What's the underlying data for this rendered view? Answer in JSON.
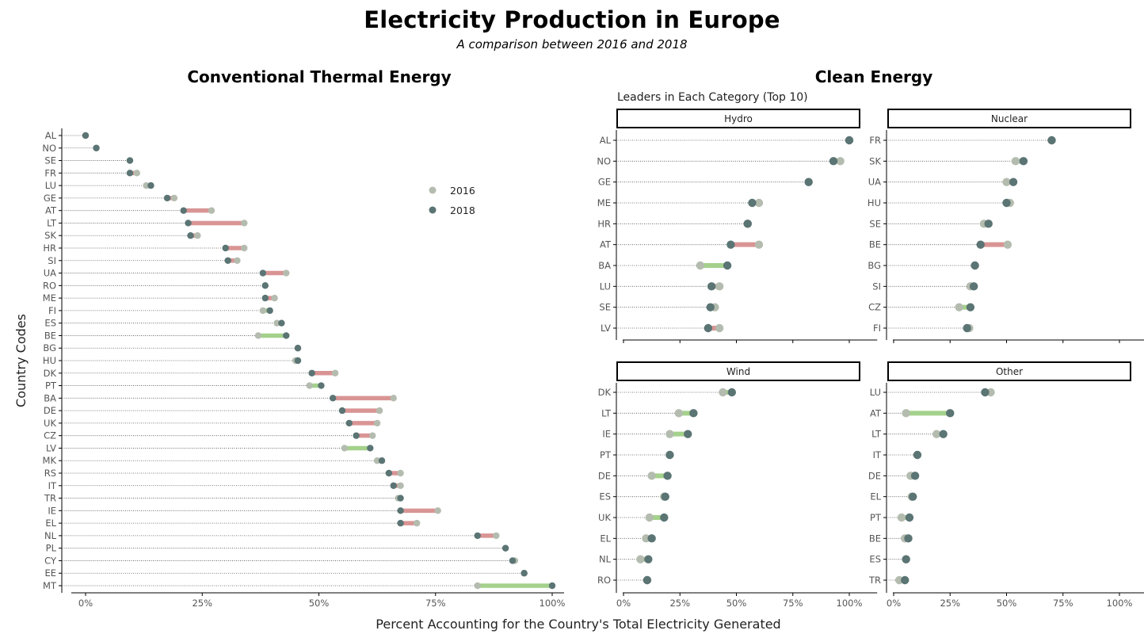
{
  "title": "Electricity Production in Europe",
  "subtitle": "A comparison between 2016 and 2018",
  "colors": {
    "point_2016": "#b4bcaf",
    "point_2018": "#5b7474",
    "increase": "#a4d18b",
    "decrease": "#d99494",
    "guide": "#555555"
  },
  "legend": {
    "items": [
      "2016",
      "2018"
    ]
  },
  "xlabel": "Percent Accounting for the Country's Total Electricity Generated",
  "ylabel": "Country Codes",
  "xticks": [
    "0%",
    "25%",
    "50%",
    "75%",
    "100%"
  ],
  "chart_data": [
    {
      "type": "dumbbell",
      "title": "Conventional Thermal Energy",
      "xlim": [
        0,
        100
      ],
      "legend_position": "upper-right",
      "categories": [
        "AL",
        "NO",
        "SE",
        "FR",
        "LU",
        "GE",
        "AT",
        "LT",
        "SK",
        "HR",
        "SI",
        "UA",
        "RO",
        "ME",
        "FI",
        "ES",
        "BE",
        "BG",
        "HU",
        "DK",
        "PT",
        "BA",
        "DE",
        "UK",
        "CZ",
        "LV",
        "MK",
        "RS",
        "IT",
        "TR",
        "IE",
        "EL",
        "NL",
        "PL",
        "CY",
        "EE",
        "MT"
      ],
      "series": [
        {
          "name": "2016",
          "values": [
            0,
            2.3,
            9.5,
            11,
            13,
            19,
            27,
            34,
            24,
            34,
            32.5,
            43,
            38.5,
            40.5,
            38,
            41,
            37,
            45.5,
            45,
            53.5,
            48,
            66,
            63,
            62.5,
            61.5,
            55.5,
            62.5,
            67.5,
            67.5,
            67,
            75.5,
            71,
            88,
            90,
            92,
            94,
            84
          ]
        },
        {
          "name": "2018",
          "values": [
            0,
            2.3,
            9.5,
            9.5,
            14,
            17.5,
            21,
            22,
            22.5,
            30,
            30.5,
            38,
            38.5,
            38.5,
            39.5,
            42,
            43,
            45.5,
            45.5,
            48.5,
            50.5,
            53,
            55,
            56.5,
            58,
            61,
            63.5,
            65,
            66,
            67.5,
            67.5,
            67.5,
            84,
            90,
            91.5,
            94,
            100
          ]
        }
      ]
    },
    {
      "type": "dumbbell",
      "subtitle": "Leaders in Each Category (Top 10)",
      "title": "Clean Energy",
      "xlim": [
        0,
        100
      ],
      "facets": [
        {
          "name": "Hydro",
          "categories": [
            "AL",
            "NO",
            "GE",
            "ME",
            "HR",
            "AT",
            "BA",
            "LU",
            "SE",
            "LV"
          ],
          "series": [
            {
              "name": "2016",
              "values": [
                100,
                96,
                82,
                60,
                55,
                60,
                34,
                42.5,
                40.5,
                42.5
              ]
            },
            {
              "name": "2018",
              "values": [
                100,
                93,
                82,
                57,
                55,
                47.5,
                46,
                39,
                38.5,
                37.5
              ]
            }
          ]
        },
        {
          "name": "Nuclear",
          "categories": [
            "FR",
            "SK",
            "UA",
            "HU",
            "SE",
            "BE",
            "BG",
            "SI",
            "CZ",
            "FI"
          ],
          "series": [
            {
              "name": "2016",
              "values": [
                70,
                54,
                50,
                51.5,
                40,
                50.5,
                36,
                34,
                29,
                33.5
              ]
            },
            {
              "name": "2018",
              "values": [
                70,
                57.5,
                53,
                50,
                42,
                38.5,
                36,
                35.5,
                34,
                32.5
              ]
            }
          ]
        },
        {
          "name": "Wind",
          "categories": [
            "DK",
            "LT",
            "IE",
            "PT",
            "DE",
            "ES",
            "UK",
            "EL",
            "NL",
            "RO"
          ],
          "series": [
            {
              "name": "2016",
              "values": [
                44,
                24.5,
                20.5,
                20.5,
                12.5,
                18,
                11.5,
                10,
                7.5,
                10.5
              ]
            },
            {
              "name": "2018",
              "values": [
                48,
                31,
                28.5,
                20.5,
                19.5,
                18.5,
                18,
                12.5,
                11,
                10.5
              ]
            }
          ]
        },
        {
          "name": "Other",
          "categories": [
            "LU",
            "AT",
            "LT",
            "IT",
            "DE",
            "EL",
            "PT",
            "BE",
            "ES",
            "TR"
          ],
          "series": [
            {
              "name": "2016",
              "values": [
                43,
                5.5,
                19,
                10.5,
                7.5,
                8,
                3.5,
                5,
                5.5,
                2.5
              ]
            },
            {
              "name": "2018",
              "values": [
                40.5,
                25,
                22,
                10.5,
                9.5,
                8.5,
                7,
                6.5,
                5.5,
                5
              ]
            }
          ]
        }
      ]
    }
  ]
}
